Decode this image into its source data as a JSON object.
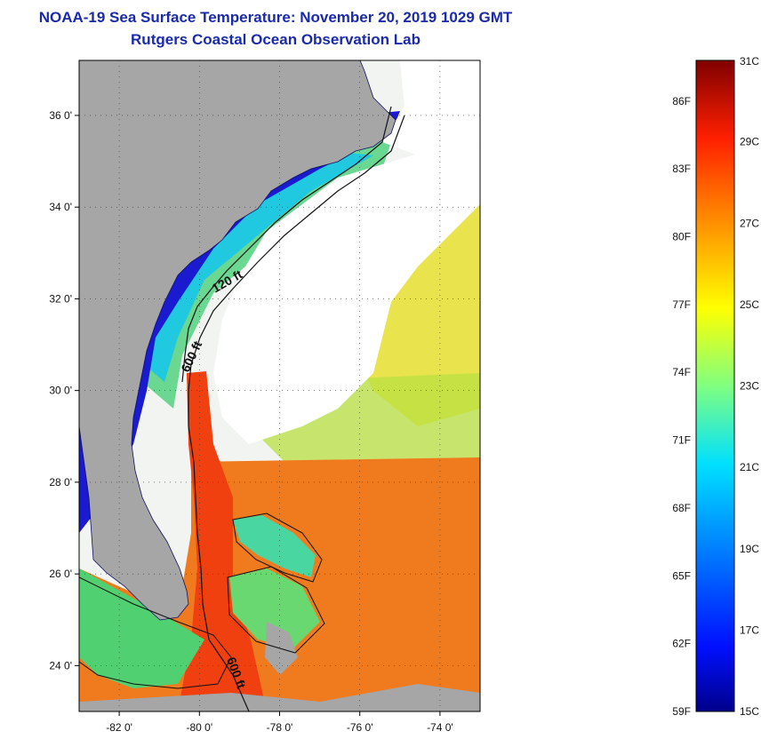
{
  "header": {
    "title": "NOAA-19 Sea Surface Temperature:  November 20, 2019 1029 GMT",
    "subtitle": "Rutgers Coastal Ocean Observation Lab"
  },
  "map": {
    "lat_ticks": [
      {
        "value": 24,
        "label": "24 0'"
      },
      {
        "value": 26,
        "label": "26 0'"
      },
      {
        "value": 28,
        "label": "28 0'"
      },
      {
        "value": 30,
        "label": "30 0'"
      },
      {
        "value": 32,
        "label": "32 0'"
      },
      {
        "value": 34,
        "label": "34 0'"
      },
      {
        "value": 36,
        "label": "36 0'"
      }
    ],
    "lon_ticks": [
      {
        "value": -82,
        "label": "-82 0'"
      },
      {
        "value": -80,
        "label": "-80 0'"
      },
      {
        "value": -78,
        "label": "-78 0'"
      },
      {
        "value": -76,
        "label": "-76 0'"
      },
      {
        "value": -74,
        "label": "-74 0'"
      }
    ],
    "lat_range": [
      23.0,
      37.2
    ],
    "lon_range": [
      -83.0,
      -73.0
    ],
    "contour_labels": [
      "120 ft",
      "600 ft",
      "600 ft"
    ],
    "colors": {
      "land": "#a6a6a6",
      "cloud": "#ffffff",
      "gulf_stream": "#f04a10",
      "coast_cold": "#1a1ad0"
    }
  },
  "colorbar": {
    "range_c": [
      15,
      31
    ],
    "celsius_labels": [
      "15C",
      "17C",
      "19C",
      "21C",
      "23C",
      "25C",
      "27C",
      "29C",
      "31C"
    ],
    "fahrenheit_labels": [
      "59F",
      "62F",
      "65F",
      "68F",
      "71F",
      "74F",
      "77F",
      "80F",
      "83F",
      "86F"
    ],
    "fahrenheit_values": [
      59,
      62,
      65,
      68,
      71,
      74,
      77,
      80,
      83,
      86
    ]
  }
}
